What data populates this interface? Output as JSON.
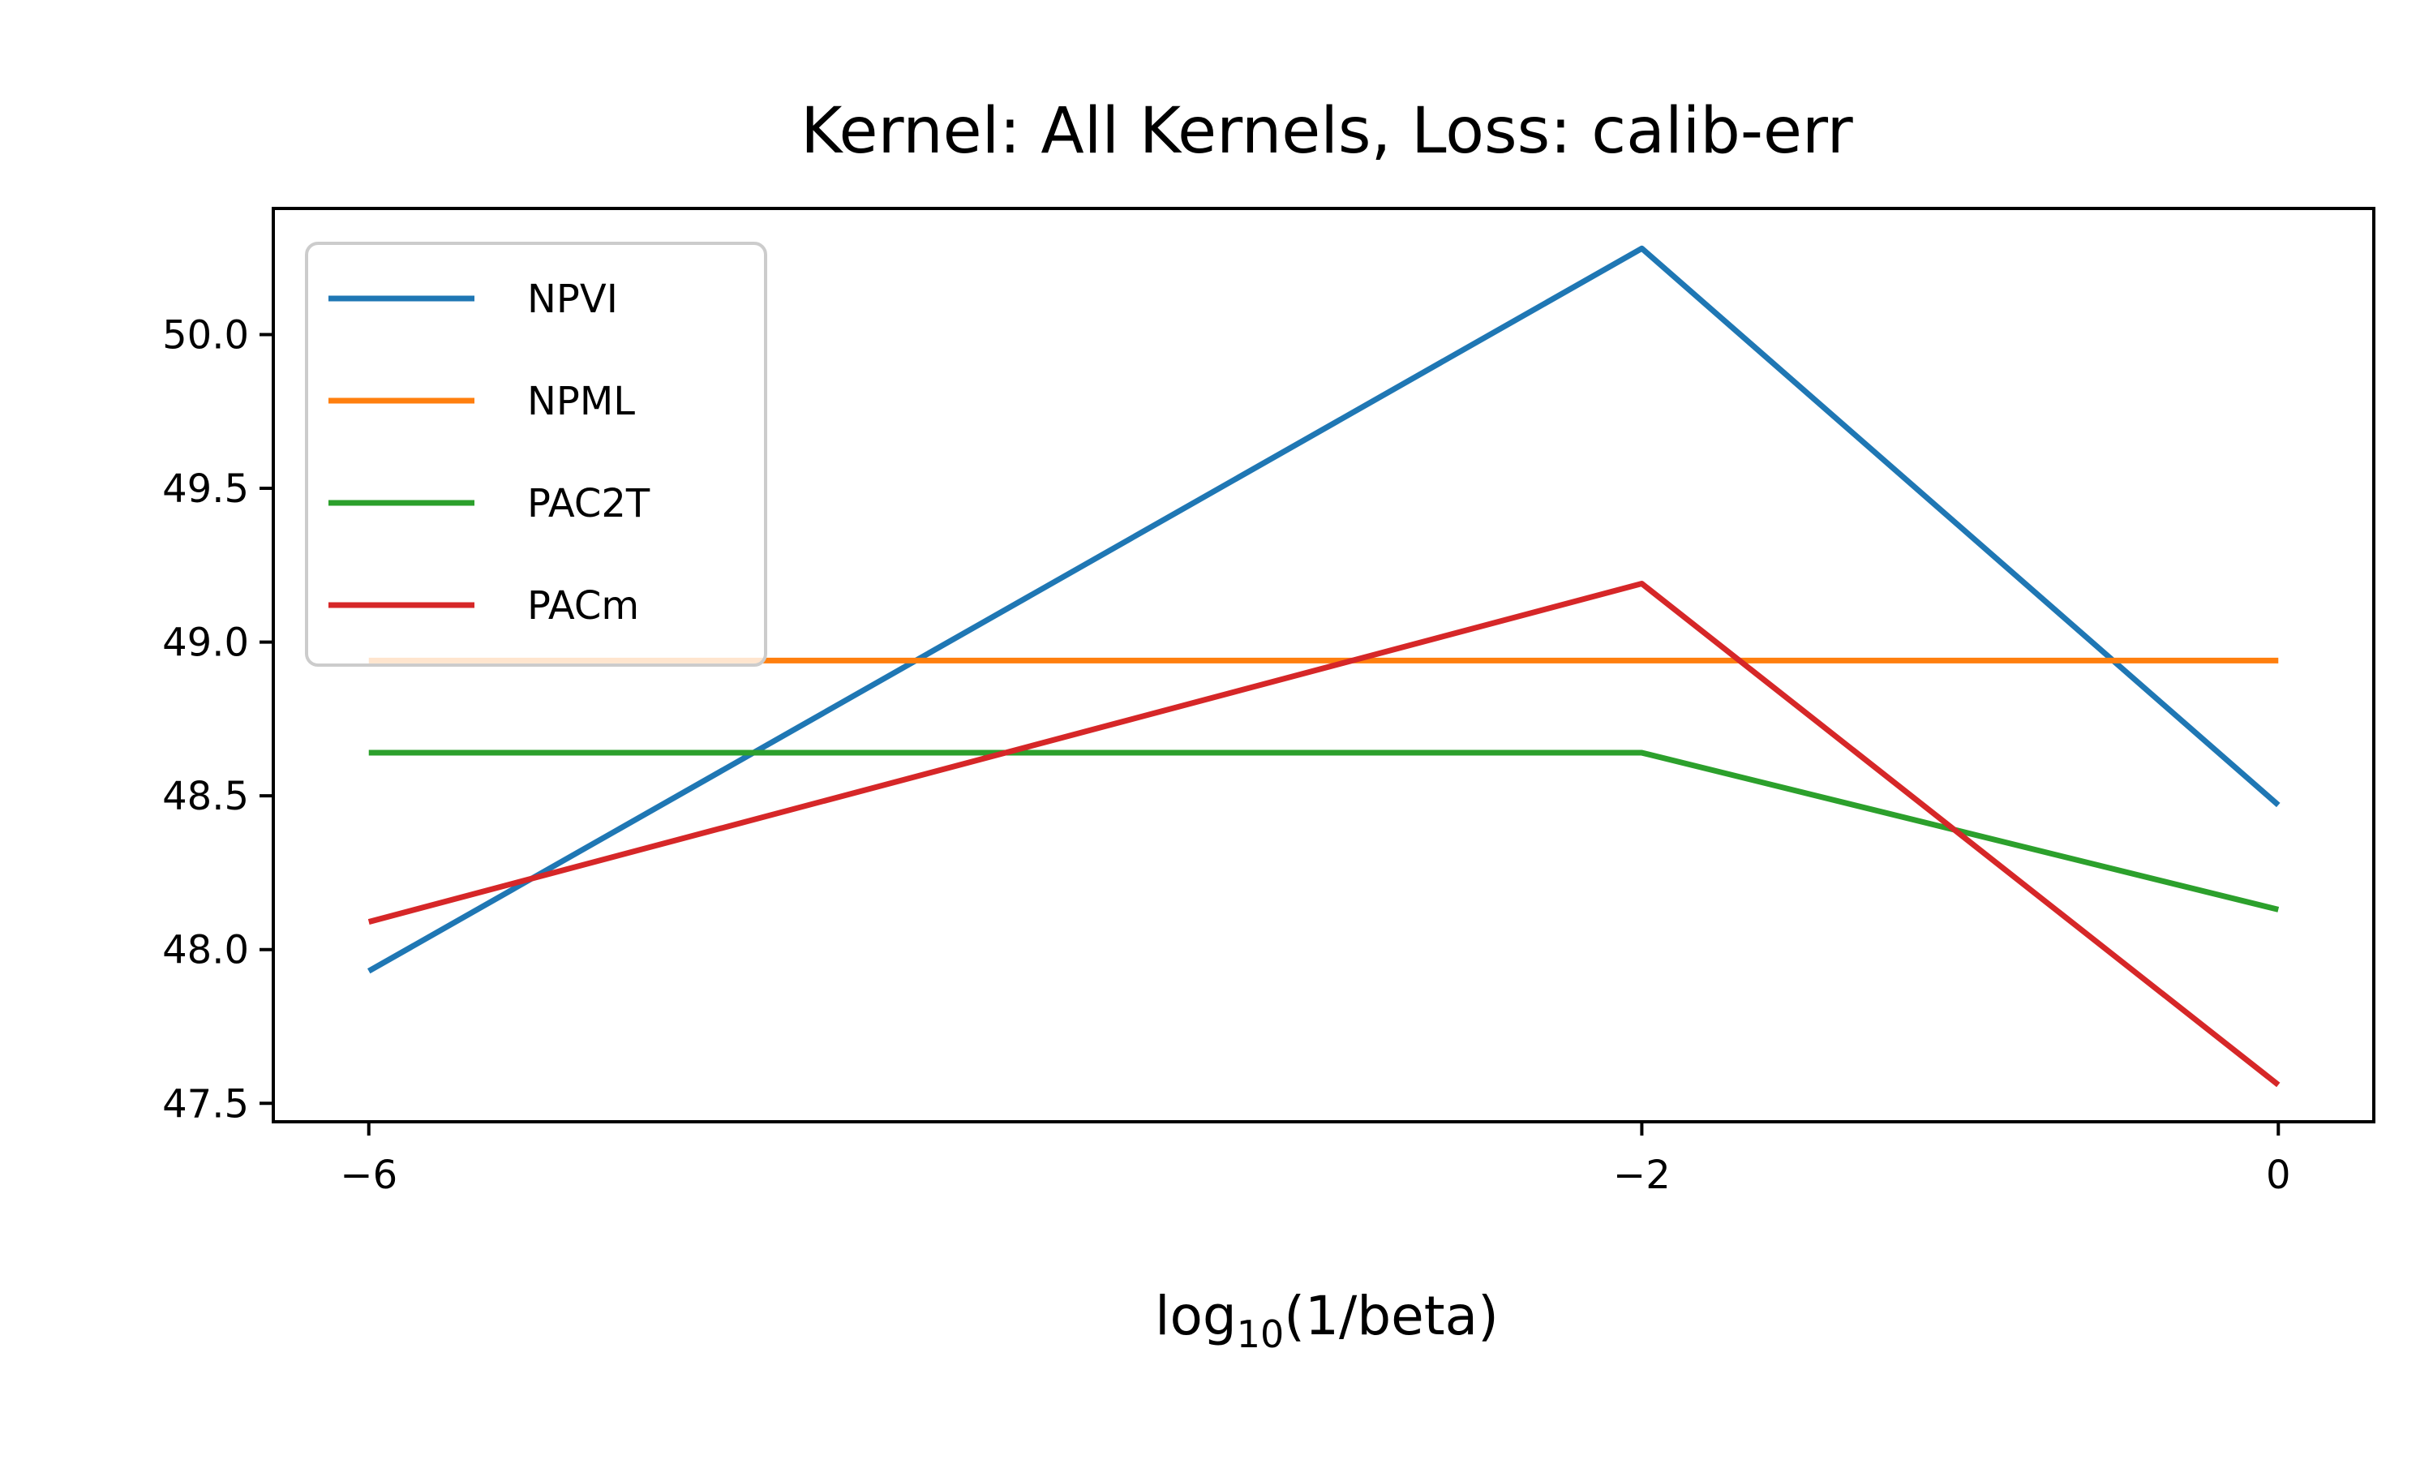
{
  "chart_data": {
    "type": "line",
    "title": "Kernel: All Kernels, Loss: calib-err",
    "xlabel": {
      "base": "log",
      "subscript": "10",
      "rest": "(1/beta)"
    },
    "ylabel": "",
    "x": [
      -6,
      -2,
      0
    ],
    "x_ticks": [
      -6,
      -2,
      0
    ],
    "x_tick_labels": [
      "−6",
      "−2",
      "0"
    ],
    "xlim": [
      -6.3,
      0.3
    ],
    "y_ticks": [
      47.5,
      48.0,
      48.5,
      49.0,
      49.5,
      50.0
    ],
    "y_tick_labels": [
      "47.5",
      "48.0",
      "48.5",
      "49.0",
      "49.5",
      "50.0"
    ],
    "ylim": [
      47.44,
      50.41
    ],
    "grid": false,
    "legend_position": "upper-left",
    "series": [
      {
        "name": "NPVI",
        "color": "#1f77b4",
        "values": [
          47.93,
          50.28,
          48.47
        ]
      },
      {
        "name": "NPML",
        "color": "#ff7f0e",
        "values": [
          48.94,
          48.94,
          48.94
        ]
      },
      {
        "name": "PAC2T",
        "color": "#2ca02c",
        "values": [
          48.64,
          48.64,
          48.13
        ]
      },
      {
        "name": "PACm",
        "color": "#d62728",
        "values": [
          48.09,
          49.19,
          47.56
        ]
      }
    ]
  }
}
